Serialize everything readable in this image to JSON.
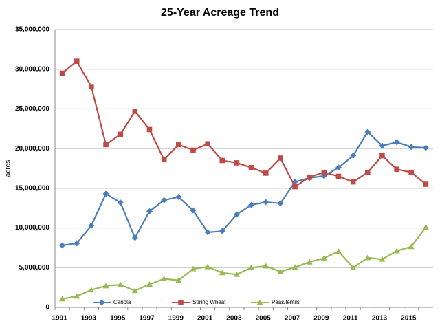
{
  "chart_data": {
    "type": "line",
    "title": "25-Year Acreage Trend",
    "y_label": "acres",
    "categories": [
      "1991",
      null,
      "1993",
      null,
      "1995",
      null,
      "1997",
      null,
      "1999",
      null,
      "2001",
      null,
      "2003",
      null,
      "2005",
      null,
      "2007",
      null,
      "2009",
      null,
      "2011",
      null,
      "2013",
      null,
      "2015",
      null
    ],
    "series": [
      {
        "name": "Canola",
        "color": "#4a7ebb",
        "marker": "diamond",
        "values": [
          7800000,
          8060000,
          10300000,
          14300000,
          13200000,
          8750000,
          12100000,
          13500000,
          13900000,
          12200000,
          9450000,
          9600000,
          11700000,
          12900000,
          13250000,
          13100000,
          15800000,
          16300000,
          16550000,
          17600000,
          19100000,
          22100000,
          20350000,
          20800000,
          20200000,
          20100000
        ]
      },
      {
        "name": "Spring Wheat",
        "color": "#be4b48",
        "marker": "square",
        "values": [
          29500000,
          31000000,
          27800000,
          20500000,
          21800000,
          24700000,
          22400000,
          18600000,
          20500000,
          19800000,
          20600000,
          18500000,
          18200000,
          17600000,
          16900000,
          18800000,
          15200000,
          16400000,
          17000000,
          16500000,
          15800000,
          17000000,
          19100000,
          17400000,
          17000000,
          15500000
        ]
      },
      {
        "name": "Peas/lentils",
        "color": "#98b954",
        "marker": "triangle",
        "values": [
          1050000,
          1400000,
          2200000,
          2700000,
          2850000,
          2100000,
          2900000,
          3600000,
          3400000,
          4850000,
          5100000,
          4350000,
          4150000,
          5000000,
          5200000,
          4500000,
          5050000,
          5700000,
          6200000,
          7050000,
          5000000,
          6250000,
          6050000,
          7100000,
          7650000,
          10100000
        ]
      }
    ],
    "ylim": [
      0,
      35000000
    ],
    "yticks": [
      0,
      {
        "value": 5000000,
        "label": "5,000,000"
      },
      {
        "value": 10000000,
        "label": "10,000,000"
      },
      {
        "value": 15000000,
        "label": "15,000,000"
      },
      {
        "value": 20000000,
        "label": "20,000,000"
      },
      {
        "value": 25000000,
        "label": "25,000,000"
      },
      {
        "value": 30000000,
        "label": "30,000,000"
      },
      {
        "value": 35000000,
        "label": "35,000,000"
      }
    ],
    "grid": true,
    "legend": "bottom"
  }
}
